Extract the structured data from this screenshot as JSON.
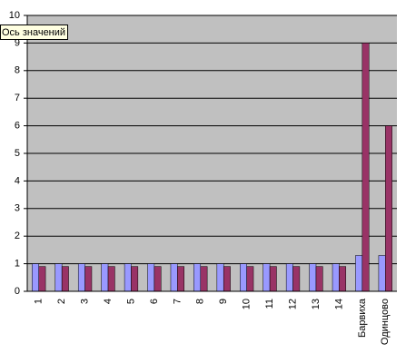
{
  "chart_data": {
    "type": "bar",
    "annotation": "Ось значений",
    "categories": [
      "1",
      "2",
      "3",
      "4",
      "5",
      "6",
      "7",
      "8",
      "9",
      "10",
      "11",
      "12",
      "13",
      "14",
      "Барвиха",
      "Одинцово"
    ],
    "series": [
      {
        "color": "#9999ff",
        "values": [
          1,
          1,
          1,
          1,
          1,
          1,
          1,
          1,
          1,
          1,
          1,
          1,
          1,
          1,
          1.3,
          1.3
        ]
      },
      {
        "color": "#993366",
        "values": [
          0.9,
          0.9,
          0.9,
          0.9,
          0.9,
          0.9,
          0.9,
          0.9,
          0.9,
          0.9,
          0.9,
          0.9,
          0.9,
          0.9,
          9,
          6
        ]
      }
    ],
    "ylim": [
      0,
      10
    ],
    "yticks": [
      0,
      1,
      2,
      3,
      4,
      5,
      6,
      7,
      8,
      9,
      10
    ],
    "grid": true,
    "plot_background": "#c0c0c0"
  }
}
